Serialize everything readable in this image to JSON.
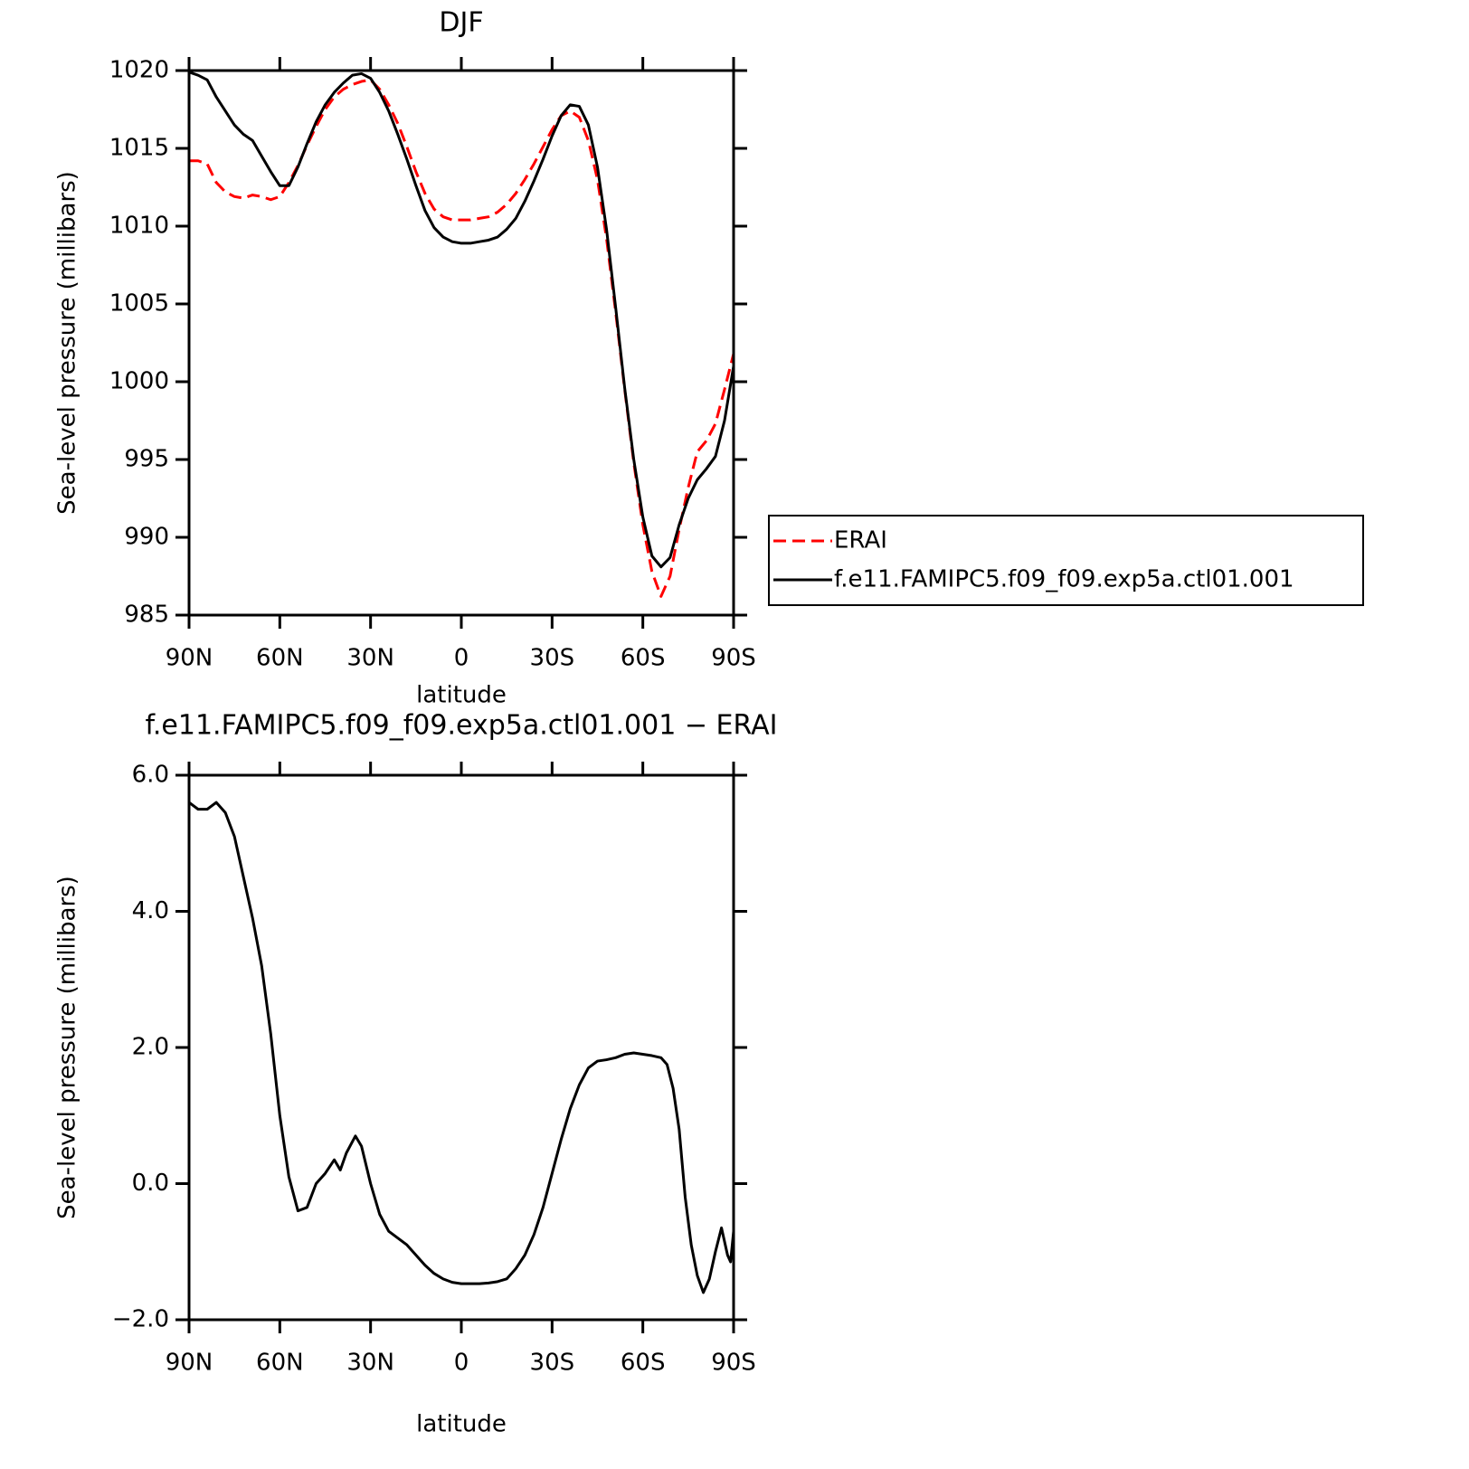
{
  "chart_data": [
    {
      "type": "line",
      "title": "DJF",
      "xlabel": "latitude",
      "ylabel": "Sea-level pressure (millibars)",
      "x": [
        90,
        87,
        84,
        81,
        78,
        75,
        72,
        69,
        66,
        63,
        60,
        57,
        54,
        51,
        48,
        45,
        42,
        39,
        36,
        33,
        30,
        27,
        24,
        21,
        18,
        15,
        12,
        9,
        6,
        3,
        0,
        -3,
        -6,
        -9,
        -12,
        -15,
        -18,
        -21,
        -24,
        -27,
        -30,
        -33,
        -36,
        -39,
        -42,
        -45,
        -48,
        -51,
        -54,
        -57,
        -60,
        -63,
        -66,
        -69,
        -72,
        -75,
        -78,
        -81,
        -84,
        -87,
        -90
      ],
      "series": [
        {
          "name": "ERAI",
          "color": "#ff0000",
          "linestyle": "dashed",
          "values": [
            1014.2,
            1014.2,
            1014.0,
            1012.8,
            1012.2,
            1011.9,
            1011.8,
            1012.0,
            1011.9,
            1011.7,
            1011.9,
            1012.8,
            1013.9,
            1015.2,
            1016.4,
            1017.5,
            1018.3,
            1018.8,
            1019.1,
            1019.3,
            1019.4,
            1018.8,
            1017.8,
            1016.6,
            1015.1,
            1013.5,
            1012.1,
            1011.1,
            1010.6,
            1010.4,
            1010.4,
            1010.4,
            1010.5,
            1010.6,
            1010.9,
            1011.4,
            1012.1,
            1013.0,
            1014.0,
            1015.1,
            1016.2,
            1017.1,
            1017.4,
            1017.0,
            1015.5,
            1013.0,
            1009.2,
            1004.5,
            999.5,
            994.8,
            990.8,
            987.8,
            986.2,
            987.5,
            990.5,
            993.2,
            995.5,
            996.2,
            997.3,
            999.5,
            1001.8
          ]
        },
        {
          "name": "f.e11.FAMIPC5.f09_f09.exp5a.ctl01.001",
          "color": "#000000",
          "linestyle": "solid",
          "values": [
            1019.9,
            1019.7,
            1019.4,
            1018.3,
            1017.4,
            1016.5,
            1015.9,
            1015.5,
            1014.5,
            1013.5,
            1012.6,
            1012.6,
            1013.8,
            1015.3,
            1016.7,
            1017.8,
            1018.6,
            1019.2,
            1019.7,
            1019.8,
            1019.5,
            1018.6,
            1017.4,
            1015.9,
            1014.3,
            1012.6,
            1011.0,
            1009.9,
            1009.3,
            1009.0,
            1008.9,
            1008.9,
            1009.0,
            1009.1,
            1009.3,
            1009.8,
            1010.5,
            1011.6,
            1012.9,
            1014.3,
            1015.8,
            1017.1,
            1017.8,
            1017.7,
            1016.5,
            1013.8,
            1009.8,
            1004.8,
            999.6,
            995.0,
            991.3,
            988.8,
            988.1,
            988.7,
            990.8,
            992.5,
            993.7,
            994.4,
            995.2,
            997.5,
            1001.0
          ]
        }
      ],
      "xlim": [
        90,
        -90
      ],
      "xticks": [
        {
          "value": 90,
          "label": "90N"
        },
        {
          "value": 60,
          "label": "60N"
        },
        {
          "value": 30,
          "label": "30N"
        },
        0,
        {
          "value": -30,
          "label": "30S"
        },
        {
          "value": -60,
          "label": "60S"
        },
        {
          "value": -90,
          "label": "90S"
        }
      ],
      "ylim": [
        985,
        1020
      ],
      "yticks": [
        985,
        990,
        995,
        1000,
        1005,
        1010,
        1015,
        1020
      ],
      "legend": "right",
      "grid": false
    },
    {
      "type": "line",
      "title": "f.e11.FAMIPC5.f09_f09.exp5a.ctl01.001 − ERAI",
      "xlabel": "latitude",
      "ylabel": "Sea-level pressure (millibars)",
      "x": [
        90,
        87,
        84,
        81,
        78,
        75,
        72,
        69,
        66,
        63,
        60,
        57,
        54,
        51,
        48,
        45,
        42,
        40,
        38,
        35,
        33,
        30,
        27,
        24,
        21,
        18,
        15,
        12,
        9,
        6,
        3,
        0,
        -3,
        -6,
        -9,
        -12,
        -15,
        -18,
        -21,
        -24,
        -27,
        -30,
        -33,
        -36,
        -39,
        -42,
        -45,
        -48,
        -51,
        -54,
        -57,
        -60,
        -63,
        -66,
        -68,
        -70,
        -72,
        -74,
        -76,
        -78,
        -80,
        -82,
        -84,
        -86,
        -88,
        -89,
        -90
      ],
      "values": [
        5.6,
        5.5,
        5.5,
        5.6,
        5.45,
        5.1,
        4.5,
        3.9,
        3.2,
        2.2,
        1.0,
        0.1,
        -0.4,
        -0.35,
        0.0,
        0.15,
        0.35,
        0.2,
        0.45,
        0.7,
        0.55,
        0.0,
        -0.45,
        -0.7,
        -0.8,
        -0.9,
        -1.05,
        -1.2,
        -1.32,
        -1.4,
        -1.45,
        -1.47,
        -1.47,
        -1.47,
        -1.46,
        -1.44,
        -1.4,
        -1.25,
        -1.05,
        -0.75,
        -0.35,
        0.15,
        0.65,
        1.1,
        1.45,
        1.7,
        1.8,
        1.82,
        1.85,
        1.9,
        1.92,
        1.9,
        1.88,
        1.85,
        1.75,
        1.4,
        0.8,
        -0.2,
        -0.9,
        -1.35,
        -1.6,
        -1.4,
        -1.0,
        -0.65,
        -1.05,
        -1.15,
        -0.7
      ],
      "color": "#000000",
      "xlim": [
        90,
        -90
      ],
      "xticks": [
        {
          "value": 90,
          "label": "90N"
        },
        {
          "value": 60,
          "label": "60N"
        },
        {
          "value": 30,
          "label": "30N"
        },
        0,
        {
          "value": -30,
          "label": "30S"
        },
        {
          "value": -60,
          "label": "60S"
        },
        {
          "value": -90,
          "label": "90S"
        }
      ],
      "ylim": [
        -2,
        6
      ],
      "yticks": [
        {
          "value": -2,
          "label": "−2.0"
        },
        {
          "value": 0,
          "label": "0.0"
        },
        {
          "value": 2,
          "label": "2.0"
        },
        {
          "value": 4,
          "label": "4.0"
        },
        {
          "value": 6,
          "label": "6.0"
        }
      ],
      "grid": false
    }
  ]
}
